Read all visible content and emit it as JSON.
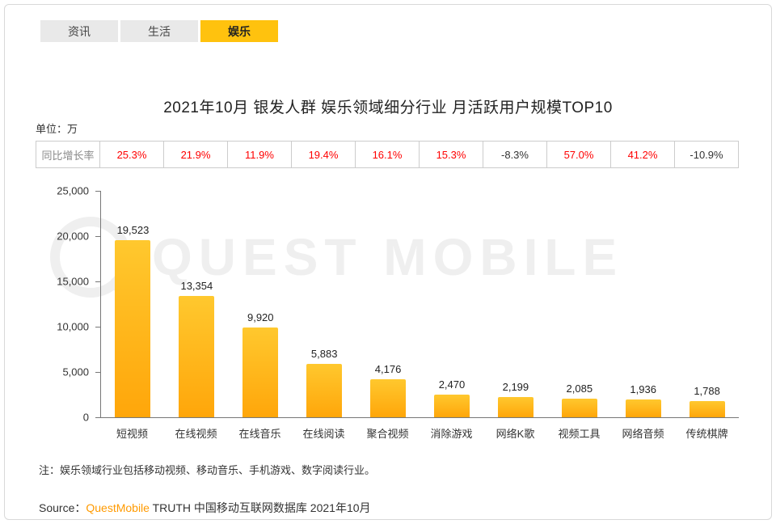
{
  "tabs": [
    {
      "label": "资讯",
      "slug": "news",
      "active": false
    },
    {
      "label": "生活",
      "slug": "life",
      "active": false
    },
    {
      "label": "娱乐",
      "slug": "entertainment",
      "active": true
    }
  ],
  "title": "2021年10月 银发人群 娱乐领域细分行业 月活跃用户规模TOP10",
  "unit_label": "单位：万",
  "growth_row": {
    "label": "同比增长率",
    "values": [
      "25.3%",
      "21.9%",
      "11.9%",
      "19.4%",
      "16.1%",
      "15.3%",
      "-8.3%",
      "57.0%",
      "41.2%",
      "-10.9%"
    ]
  },
  "chart_data": {
    "type": "bar",
    "title": "2021年10月 银发人群 娱乐领域细分行业 月活跃用户规模TOP10",
    "ylabel": "单位：万",
    "categories": [
      "短视频",
      "在线视频",
      "在线音乐",
      "在线阅读",
      "聚合视频",
      "消除游戏",
      "网络K歌",
      "视频工具",
      "网络音频",
      "传统棋牌"
    ],
    "values": [
      19523,
      13354,
      9920,
      5883,
      4176,
      2470,
      2199,
      2085,
      1936,
      1788
    ],
    "value_labels": [
      "19,523",
      "13,354",
      "9,920",
      "5,883",
      "4,176",
      "2,470",
      "2,199",
      "2,085",
      "1,936",
      "1,788"
    ],
    "yoy_growth": [
      "25.3%",
      "21.9%",
      "11.9%",
      "19.4%",
      "16.1%",
      "15.3%",
      "-8.3%",
      "57.0%",
      "41.2%",
      "-10.9%"
    ],
    "ylim": [
      0,
      25000
    ],
    "yticks": [
      "25,000",
      "20,000",
      "15,000",
      "10,000",
      "5,000",
      "0"
    ],
    "grid": false,
    "legend": "none",
    "bar_color_top": "#FFC82E",
    "bar_color_bottom": "#FFA60A"
  },
  "note": "注：娱乐领域行业包括移动视频、移动音乐、手机游戏、数字阅读行业。",
  "source": {
    "prefix": "Source：",
    "brand": "QuestMobile",
    "suffix": " TRUTH 中国移动互联网数据库 2021年10月"
  },
  "watermark": "QUEST MOBILE",
  "colors": {
    "accent": "#FFC20E",
    "positive": "#FF0000",
    "negative": "#333333",
    "brand": "#FF9A00"
  }
}
